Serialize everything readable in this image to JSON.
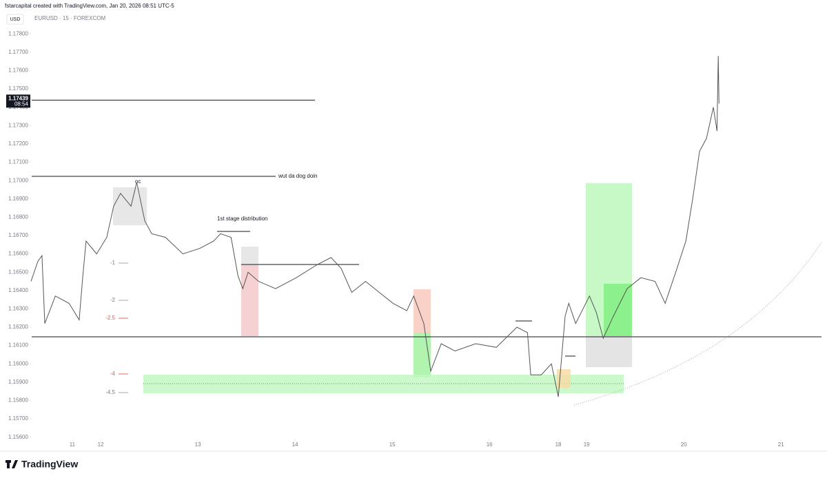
{
  "header": "fstarcapital created with TradingView.com, Jan 20, 2026 08:51 UTC-5",
  "currency": "USD",
  "brand": "TradingView",
  "chart_data": {
    "type": "line",
    "series": [
      {
        "name": "EURUSD · 15 · FOREXCOM",
        "color": "#555555",
        "values": [
          1.1645,
          1.1656,
          1.1659,
          1.1622,
          1.1637,
          1.1633,
          1.1624,
          1.1648,
          1.1667,
          1.166,
          1.1669,
          1.1686,
          1.1693,
          1.1686,
          1.1699,
          1.1678,
          1.1671,
          1.1669,
          1.166,
          1.1663,
          1.1667,
          1.1671,
          1.1669,
          1.1648,
          1.1641,
          1.165,
          1.1645,
          1.1641,
          1.1647,
          1.1654,
          1.1658,
          1.1652,
          1.1639,
          1.1645,
          1.1639,
          1.1633,
          1.1629,
          1.1637,
          1.1622,
          1.1596,
          1.1611,
          1.1607,
          1.1611,
          1.1609,
          1.162,
          1.1617,
          1.1594,
          1.1594,
          1.16,
          1.1582,
          1.1626,
          1.1633,
          1.1622,
          1.1637,
          1.1628,
          1.1614,
          1.1626,
          1.1641,
          1.1647,
          1.1645,
          1.1633,
          1.165,
          1.1667,
          1.169,
          1.1716,
          1.1723,
          1.174,
          1.1727,
          1.1768,
          1.1742
        ]
      }
    ],
    "x": [
      -17.2,
      -15.5,
      -14.5,
      -13.8,
      -11.2,
      -7.8,
      -5.3,
      -4.4,
      -3.6,
      -1.0,
      1.5,
      3.2,
      4.9,
      7.5,
      8.9,
      10.9,
      12.6,
      16.0,
      20.3,
      24.5,
      27.9,
      29.6,
      32.2,
      33.9,
      35.1,
      36.4,
      39.0,
      43.2,
      48.3,
      53.4,
      56.9,
      59.4,
      62.0,
      65.4,
      68.8,
      72.2,
      75.6,
      77.3,
      79.8,
      81.5,
      84.1,
      87.5,
      92.6,
      97.7,
      102.8,
      105.4,
      106.2,
      108.8,
      111.3,
      113.0,
      114.7,
      115.6,
      117.3,
      120.7,
      122.4,
      124.1,
      126.6,
      130.0,
      133.4,
      136.9,
      139.4,
      142.0,
      144.5,
      146.2,
      147.9,
      149.6,
      151.3,
      152.2,
      152.5,
      152.7
    ],
    "xlim": [
      -17.2,
      178
    ],
    "xticks": [
      {
        "value": -7,
        "label": "11"
      },
      {
        "value": 0,
        "label": "12"
      },
      {
        "value": 24,
        "label": "13"
      },
      {
        "value": 48,
        "label": "14"
      },
      {
        "value": 72,
        "label": "15"
      },
      {
        "value": 96,
        "label": "16"
      },
      {
        "value": 113,
        "label": "18"
      },
      {
        "value": 120,
        "label": "19"
      },
      {
        "value": 144,
        "label": "20"
      },
      {
        "value": 168,
        "label": "21"
      }
    ],
    "ylim": [
      1.1558,
      1.1791
    ],
    "yticks": [
      {
        "value": 1.156,
        "label": "1.15600"
      },
      {
        "value": 1.157,
        "label": "1.15700"
      },
      {
        "value": 1.158,
        "label": "1.15800"
      },
      {
        "value": 1.159,
        "label": "1.15900"
      },
      {
        "value": 1.16,
        "label": "1.16000"
      },
      {
        "value": 1.161,
        "label": "1.16100"
      },
      {
        "value": 1.162,
        "label": "1.16200"
      },
      {
        "value": 1.163,
        "label": "1.16300"
      },
      {
        "value": 1.164,
        "label": "1.16400"
      },
      {
        "value": 1.165,
        "label": "1.16500"
      },
      {
        "value": 1.166,
        "label": "1.16600"
      },
      {
        "value": 1.167,
        "label": "1.16700"
      },
      {
        "value": 1.168,
        "label": "1.16800"
      },
      {
        "value": 1.169,
        "label": "1.16900"
      },
      {
        "value": 1.17,
        "label": "1.17000"
      },
      {
        "value": 1.171,
        "label": "1.17100"
      },
      {
        "value": 1.172,
        "label": "1.17200"
      },
      {
        "value": 1.173,
        "label": "1.17300"
      },
      {
        "value": 1.174,
        "label": "1.17400"
      },
      {
        "value": 1.175,
        "label": "1.17500"
      },
      {
        "value": 1.176,
        "label": "1.17600"
      },
      {
        "value": 1.177,
        "label": "1.17700"
      },
      {
        "value": 1.178,
        "label": "1.17800"
      }
    ],
    "last_price": 1.17439,
    "countdown": "08:54",
    "annotations": [
      "wut da dog doin",
      "1st stage distribution",
      "oc",
      "-1",
      "-2",
      "-2.5",
      "-4",
      "-4.5"
    ]
  }
}
